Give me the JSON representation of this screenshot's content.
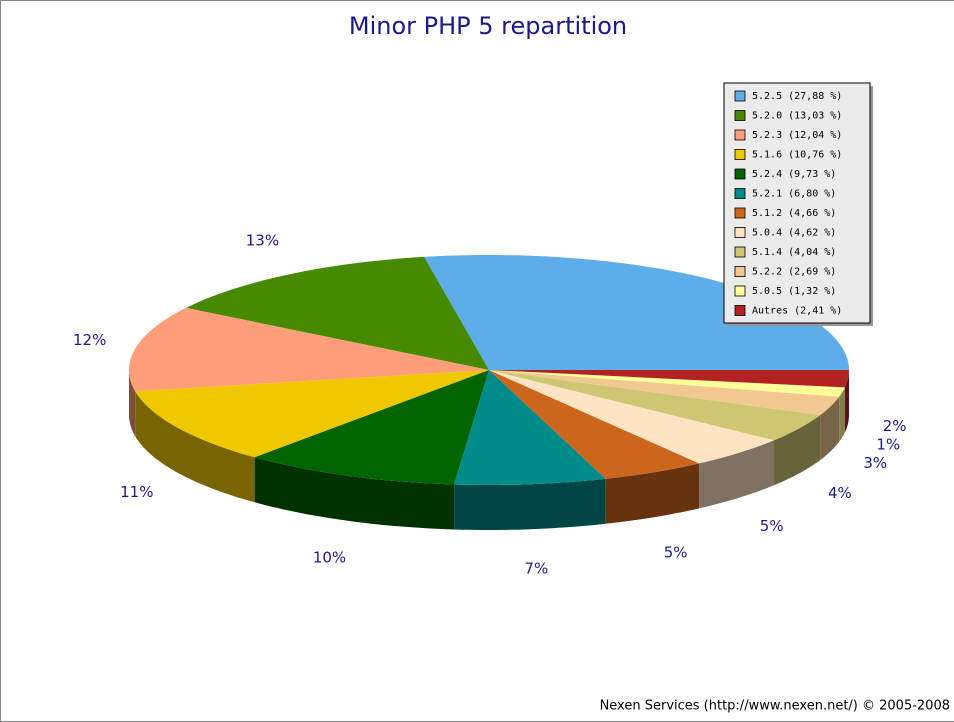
{
  "chart_data": {
    "type": "pie3d",
    "title": "Minor PHP 5 repartition",
    "footer": "Nexen Services (http://www.nexen.net/) © 2005-2008",
    "categories": [
      "5.2.5 (27,88 %)",
      "5.2.0 (13,03 %)",
      "5.2.3 (12,04 %)",
      "5.1.6 (10,76 %)",
      "5.2.4 (9,73 %)",
      "5.2.1 (6,80 %)",
      "5.1.2 (4,66 %)",
      "5.0.4 (4,62 %)",
      "5.1.4 (4,04 %)",
      "5.2.2 (2,69 %)",
      "5.0.5 (1,32 %)",
      "Autres (2,41 %)"
    ],
    "values": [
      27.88,
      13.03,
      12.04,
      10.76,
      9.73,
      6.8,
      4.66,
      4.62,
      4.04,
      2.69,
      1.32,
      2.41
    ],
    "value_labels": [
      null,
      "13%",
      "12%",
      "11%",
      "10%",
      "7%",
      "5%",
      "5%",
      "4%",
      "3%",
      "1%",
      "2%"
    ],
    "colors": [
      "#5dade8",
      "#458a00",
      "#ff9e78",
      "#f0c800",
      "#006400",
      "#008b8b",
      "#cd661d",
      "#ffe4c4",
      "#cdc673",
      "#f0c890",
      "#ffff99",
      "#b22222"
    ],
    "legend": "top-right"
  }
}
